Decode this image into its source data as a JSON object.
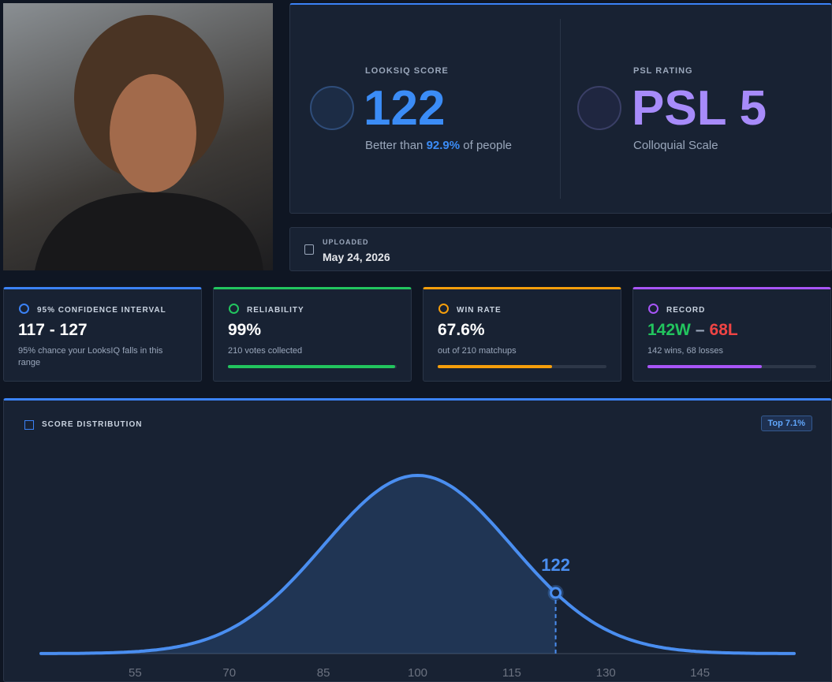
{
  "score_card": {
    "label": "LOOKSIQ SCORE",
    "value": "122",
    "better_prefix": "Better than",
    "better_percent": "92.9%",
    "better_suffix": "of people"
  },
  "psl_card": {
    "label": "PSL RATING",
    "value": "PSL 5",
    "caption": "Colloquial Scale"
  },
  "uploaded": {
    "label": "UPLOADED",
    "date": "May 24, 2026"
  },
  "stats": [
    {
      "label": "95% CONFIDENCE INTERVAL",
      "value": "117 - 127",
      "caption": "95% chance your LooksIQ falls in this range",
      "color": "#3b82f6"
    },
    {
      "label": "RELIABILITY",
      "value": "99%",
      "caption": "210 votes collected",
      "color": "#22c55e",
      "progress": 99
    },
    {
      "label": "WIN RATE",
      "value": "67.6%",
      "caption": "out of 210 matchups",
      "color": "#f59e0b",
      "progress": 67.6
    },
    {
      "label": "RECORD",
      "wins": "142W",
      "dash": "–",
      "losses": "68L",
      "caption": "142 wins, 68 losses",
      "color": "#a855f7",
      "progress": 67.6
    }
  ],
  "chart_data": {
    "type": "density",
    "title": "SCORE DISTRIBUTION",
    "badge": "Top 7.1%",
    "mean": 100,
    "sd": 15,
    "marker": 122,
    "color": "#4a8ef0",
    "xlim": [
      40,
      160
    ],
    "xticks": [
      55,
      70,
      85,
      100,
      115,
      130,
      145
    ]
  }
}
